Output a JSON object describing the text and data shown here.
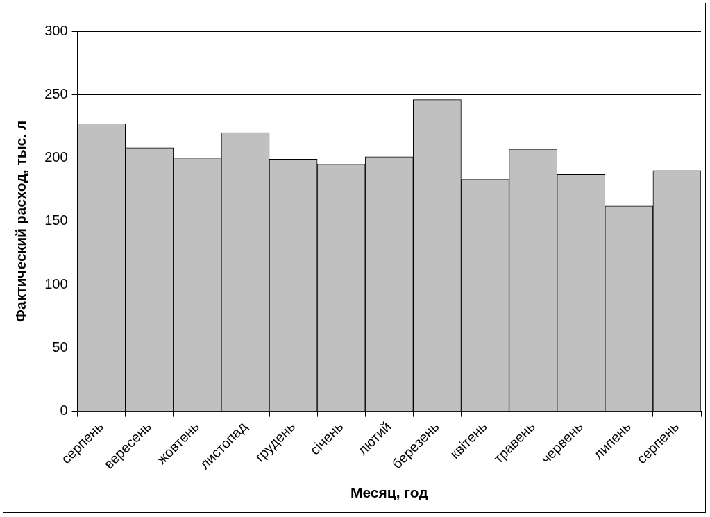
{
  "chart_data": {
    "type": "bar",
    "xlabel": "Месяц, год",
    "ylabel": "Фактический расход, тыс. л",
    "categories": [
      "серпень",
      "вересень",
      "жовтень",
      "листопад",
      "грудень",
      "січень",
      "лютий",
      "березень",
      "квітень",
      "травень",
      "червень",
      "липень",
      "серпень"
    ],
    "values": [
      227,
      208,
      200,
      220,
      199,
      195,
      201,
      246,
      183,
      207,
      187,
      162,
      190
    ],
    "color": "#c0c0c0",
    "ylim": [
      0,
      300
    ],
    "yticks": [
      0,
      50,
      100,
      150,
      200,
      250,
      300
    ],
    "grid": "y",
    "legend": false
  }
}
